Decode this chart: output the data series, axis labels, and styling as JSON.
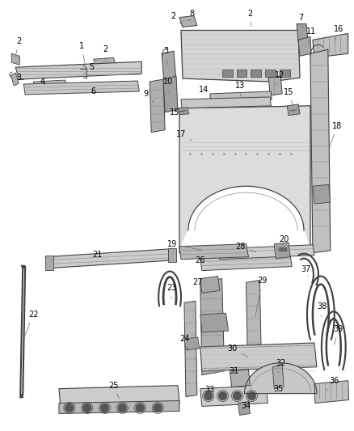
{
  "bg_color": "#ffffff",
  "lc": "#404040",
  "lc2": "#888888",
  "fc_light": "#d8d8d8",
  "fc_mid": "#b8b8b8",
  "fc_dark": "#909090",
  "label_fs": 7,
  "label_color": "#000000",
  "fig_w": 4.38,
  "fig_h": 5.33,
  "dpi": 100
}
